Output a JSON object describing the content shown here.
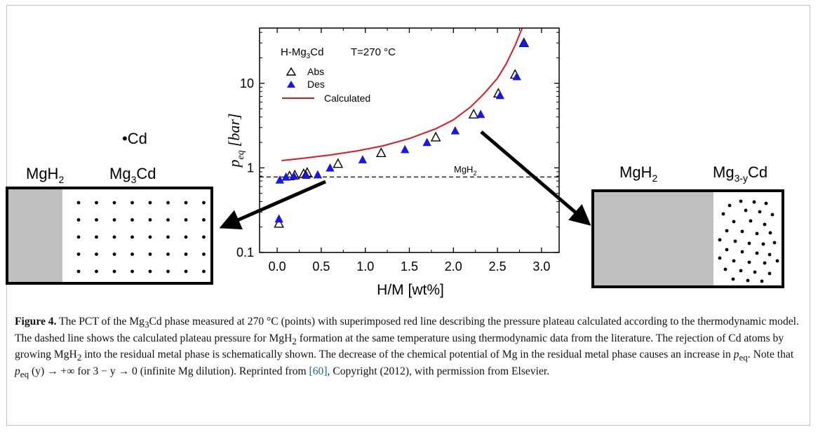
{
  "chart_data": {
    "type": "scatter",
    "title": "H-Mg3Cd",
    "title_parts": {
      "base": "H-Mg",
      "sub": "3",
      "tail": "Cd"
    },
    "temperature_label": "T=270 °C",
    "xlabel": "H/M [wt%]",
    "ylabel": "p_eq [bar]",
    "ylabel_parts": {
      "p": "p",
      "sub": "eq",
      "unit": "[bar]"
    },
    "xlim": [
      -0.2,
      3.2
    ],
    "ylim": [
      0.1,
      45
    ],
    "yscale": "log",
    "xticks": [
      "0.0",
      "0.5",
      "1.0",
      "1.5",
      "2.0",
      "2.5",
      "3.0"
    ],
    "yticks": [
      "0.1",
      "1",
      "10"
    ],
    "legend_position": "top-left",
    "series": [
      {
        "name": "Abs",
        "marker": "open-triangle",
        "color": "#000000",
        "x": [
          0.02,
          0.14,
          0.2,
          0.3,
          0.34,
          0.69,
          1.18,
          1.8,
          2.23,
          2.51,
          2.7,
          2.8
        ],
        "y": [
          0.22,
          0.8,
          0.82,
          0.85,
          0.88,
          1.12,
          1.5,
          2.3,
          4.3,
          7.6,
          12.7,
          30.0
        ]
      },
      {
        "name": "Des",
        "marker": "filled-triangle",
        "color": "#1818e6",
        "x": [
          0.02,
          0.03,
          0.1,
          0.19,
          0.33,
          0.46,
          0.6,
          0.97,
          1.45,
          1.7,
          2.02,
          2.31,
          2.53,
          2.72,
          2.8
        ],
        "y": [
          0.25,
          0.72,
          0.78,
          0.8,
          0.82,
          0.83,
          1.0,
          1.25,
          1.65,
          2.0,
          2.75,
          4.3,
          7.2,
          12.0,
          30.0
        ]
      },
      {
        "name": "Calculated",
        "marker": "line",
        "color": "#e8161b",
        "x": [
          0.05,
          0.3,
          0.6,
          0.9,
          1.2,
          1.5,
          1.8,
          2.0,
          2.2,
          2.35,
          2.5,
          2.6,
          2.7,
          2.78
        ],
        "y": [
          1.22,
          1.3,
          1.42,
          1.58,
          1.82,
          2.22,
          2.9,
          3.7,
          5.3,
          7.6,
          11.5,
          17.0,
          28.0,
          45.0
        ]
      }
    ],
    "reference_line": {
      "label": "MgH2",
      "label_parts": {
        "base": "MgH",
        "sub": "2"
      },
      "y": 0.78,
      "style": "dashed"
    }
  },
  "schematic": {
    "cd_label": "Cd",
    "left": {
      "label_a": {
        "base": "MgH",
        "sub": "2"
      },
      "label_b": {
        "base": "Mg",
        "sub": "3",
        "tail": "Cd"
      }
    },
    "right": {
      "label_a": {
        "base": "MgH",
        "sub": "2"
      },
      "label_b": {
        "base": "Mg",
        "sub": "3-y",
        "tail": "Cd"
      }
    }
  },
  "caption": {
    "label": "Figure 4.",
    "p1": "The PCT of the Mg",
    "p1_sub": "3",
    "p2": "Cd phase measured at 270 °C (points) with superimposed red line describing the pressure plateau calculated according to the thermodynamic model. The dashed line shows the calculated plateau pressure for MgH",
    "p2_sub": "2",
    "p3": "formation at the same temperature using thermodynamic data from the literature. The rejection of Cd atoms by growing MgH",
    "p3_sub": "2",
    "p4": "into the residual metal phase is schematically shown. The decrease of the chemical potential of Mg in the residual metal phase causes an increase in",
    "p4_var": "p",
    "p4_sub": "eq",
    "p5": ". Note that",
    "p5_var": "p",
    "p5_sub": "eq",
    "p6": "(y) → +∞ for 3 − y → 0 (infinite Mg dilution). Reprinted from",
    "cite": "[60]",
    "p7": ", Copyright (2012), with permission from Elsevier."
  }
}
